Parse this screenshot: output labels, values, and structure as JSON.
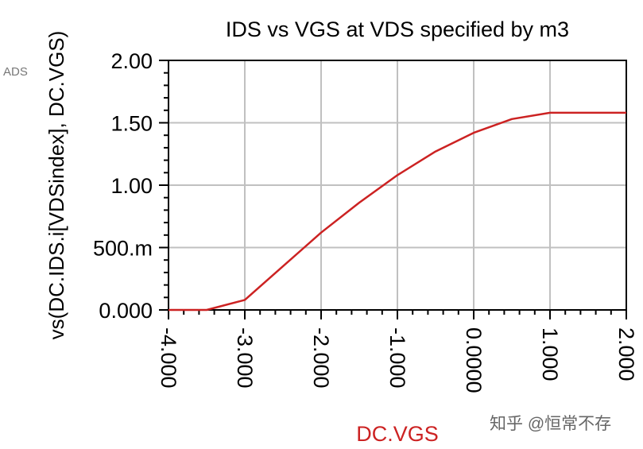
{
  "corner_label": "ADS",
  "watermark": "知乎 @恒常不存",
  "colors": {
    "series": "#cc2222",
    "xlabel": "#cc2222",
    "grid": "#c0c0c0",
    "axis": "#000000"
  },
  "chart_data": {
    "type": "line",
    "title": "IDS vs VGS at VDS specified by m3",
    "xlabel": "DC.VGS",
    "ylabel": "vs(DC.IDS.i[VDSindex], DC.VGS)",
    "xlim": [
      -4,
      2
    ],
    "ylim": [
      0,
      2
    ],
    "x_ticks": [
      -4,
      -3,
      -2,
      -1,
      0,
      1,
      2
    ],
    "x_tick_labels": [
      "-4.000",
      "-3.000",
      "-2.000",
      "-1.000",
      "0.0000",
      "1.000",
      "2.000"
    ],
    "y_ticks": [
      0,
      0.5,
      1,
      1.5,
      2
    ],
    "y_tick_labels": [
      "0.000",
      "500.m",
      "1.00",
      "1.50",
      "2.00"
    ],
    "grid": true,
    "series": [
      {
        "x": [
          -4.0,
          -3.5,
          -3.0,
          -2.5,
          -2.0,
          -1.5,
          -1.0,
          -0.5,
          0.0,
          0.5,
          1.0,
          1.5,
          2.0
        ],
        "y": [
          0.0,
          0.0,
          0.08,
          0.35,
          0.62,
          0.86,
          1.08,
          1.27,
          1.42,
          1.53,
          1.58,
          1.58,
          1.58
        ]
      }
    ]
  }
}
